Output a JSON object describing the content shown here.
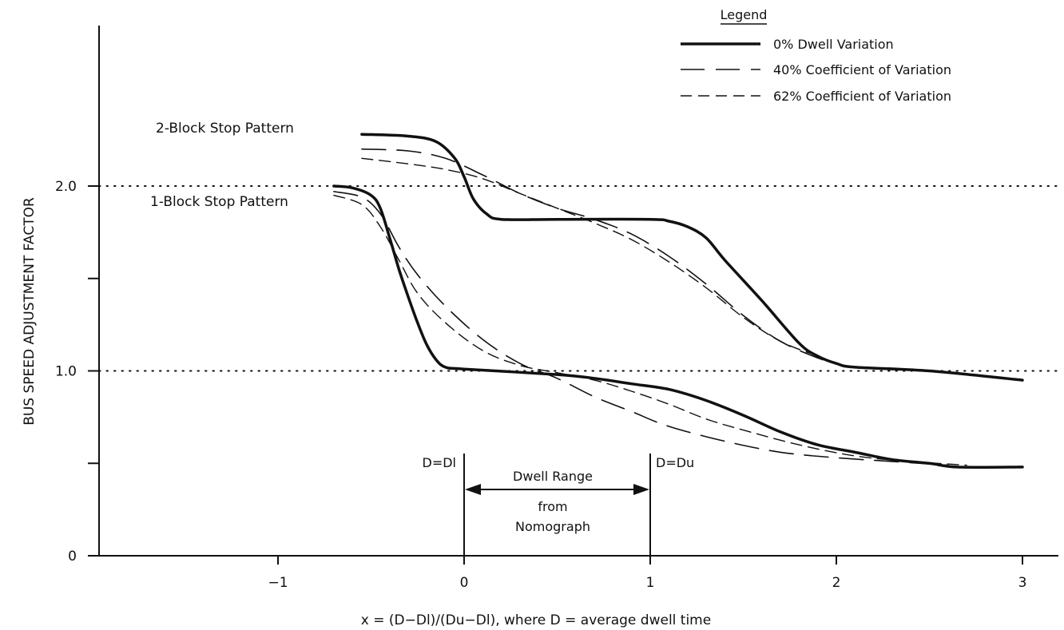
{
  "chart_data": {
    "type": "line",
    "xlabel": "x = (D−Dl)/(Du−Dl), where D = average dwell time",
    "ylabel": "BUS SPEED ADJUSTMENT FACTOR",
    "xlim": [
      -1.95,
      3.3
    ],
    "ylim": [
      0,
      2.7
    ],
    "x_ticks": [
      -1,
      0,
      1,
      2,
      3
    ],
    "x_tick_labels": [
      "−1",
      "0",
      "1",
      "2",
      "3"
    ],
    "y_ticks": [
      0,
      0.5,
      1.0,
      1.5,
      2.0
    ],
    "y_tick_labels": [
      "0",
      "",
      "1.0",
      "",
      "2.0"
    ],
    "reference_lines": [
      1.0,
      2.0
    ],
    "legend": {
      "title": "Legend",
      "position": "top-right",
      "entries": [
        {
          "label": "0% Dwell Variation",
          "style": "solid"
        },
        {
          "label": "40% Coefficient of Variation",
          "style": "long-dash"
        },
        {
          "label": "62% Coefficient of Variation",
          "style": "short-dash"
        }
      ]
    },
    "annotations": {
      "two_block": "2-Block Stop Pattern",
      "one_block": "1-Block Stop Pattern",
      "d_dl": "D=Dl",
      "d_du": "D=Du",
      "range_line1": "Dwell Range",
      "range_line2": "from",
      "range_line3": "Nomograph"
    },
    "series": [
      {
        "group": "2-Block Stop Pattern",
        "style": "solid",
        "points": [
          [
            -0.55,
            2.28
          ],
          [
            -0.3,
            2.27
          ],
          [
            -0.15,
            2.24
          ],
          [
            -0.05,
            2.15
          ],
          [
            0,
            2.05
          ],
          [
            0.05,
            1.93
          ],
          [
            0.12,
            1.85
          ],
          [
            0.2,
            1.82
          ],
          [
            0.5,
            1.82
          ],
          [
            1.0,
            1.82
          ],
          [
            1.1,
            1.81
          ],
          [
            1.2,
            1.78
          ],
          [
            1.3,
            1.72
          ],
          [
            1.4,
            1.6
          ],
          [
            1.6,
            1.38
          ],
          [
            1.8,
            1.15
          ],
          [
            1.9,
            1.08
          ],
          [
            2.0,
            1.04
          ],
          [
            2.1,
            1.02
          ],
          [
            2.5,
            1.0
          ],
          [
            3.0,
            0.95
          ]
        ]
      },
      {
        "group": "2-Block Stop Pattern",
        "style": "long-dash",
        "points": [
          [
            -0.55,
            2.2
          ],
          [
            -0.3,
            2.19
          ],
          [
            -0.1,
            2.15
          ],
          [
            0.1,
            2.06
          ],
          [
            0.3,
            1.96
          ],
          [
            0.5,
            1.88
          ],
          [
            0.7,
            1.82
          ],
          [
            0.9,
            1.74
          ],
          [
            1.1,
            1.62
          ],
          [
            1.3,
            1.47
          ],
          [
            1.5,
            1.3
          ],
          [
            1.7,
            1.16
          ],
          [
            1.9,
            1.07
          ],
          [
            2.0,
            1.04
          ]
        ]
      },
      {
        "group": "2-Block Stop Pattern",
        "style": "short-dash",
        "points": [
          [
            -0.55,
            2.15
          ],
          [
            -0.3,
            2.12
          ],
          [
            -0.1,
            2.09
          ],
          [
            0.1,
            2.04
          ],
          [
            0.3,
            1.96
          ],
          [
            0.5,
            1.88
          ],
          [
            0.7,
            1.8
          ],
          [
            0.9,
            1.71
          ],
          [
            1.1,
            1.59
          ],
          [
            1.3,
            1.45
          ],
          [
            1.5,
            1.29
          ],
          [
            1.7,
            1.16
          ],
          [
            1.9,
            1.08
          ],
          [
            2.0,
            1.04
          ]
        ]
      },
      {
        "group": "1-Block Stop Pattern",
        "style": "solid",
        "points": [
          [
            -0.7,
            2.0
          ],
          [
            -0.6,
            1.99
          ],
          [
            -0.5,
            1.95
          ],
          [
            -0.45,
            1.88
          ],
          [
            -0.4,
            1.72
          ],
          [
            -0.35,
            1.55
          ],
          [
            -0.3,
            1.4
          ],
          [
            -0.25,
            1.26
          ],
          [
            -0.2,
            1.14
          ],
          [
            -0.15,
            1.06
          ],
          [
            -0.1,
            1.02
          ],
          [
            0,
            1.01
          ],
          [
            0.5,
            0.98
          ],
          [
            0.7,
            0.96
          ],
          [
            0.9,
            0.93
          ],
          [
            1.1,
            0.9
          ],
          [
            1.3,
            0.84
          ],
          [
            1.5,
            0.76
          ],
          [
            1.7,
            0.67
          ],
          [
            1.9,
            0.6
          ],
          [
            2.1,
            0.56
          ],
          [
            2.3,
            0.52
          ],
          [
            2.5,
            0.5
          ],
          [
            2.65,
            0.48
          ],
          [
            3.0,
            0.48
          ]
        ]
      },
      {
        "group": "1-Block Stop Pattern",
        "style": "long-dash",
        "points": [
          [
            -0.7,
            1.97
          ],
          [
            -0.55,
            1.94
          ],
          [
            -0.45,
            1.85
          ],
          [
            -0.35,
            1.67
          ],
          [
            -0.25,
            1.52
          ],
          [
            -0.1,
            1.35
          ],
          [
            0.1,
            1.17
          ],
          [
            0.3,
            1.04
          ],
          [
            0.5,
            0.96
          ],
          [
            0.7,
            0.86
          ],
          [
            0.9,
            0.78
          ],
          [
            1.1,
            0.7
          ],
          [
            1.4,
            0.62
          ],
          [
            1.7,
            0.56
          ],
          [
            2.0,
            0.53
          ],
          [
            2.3,
            0.51
          ],
          [
            2.6,
            0.49
          ]
        ]
      },
      {
        "group": "1-Block Stop Pattern",
        "style": "short-dash",
        "points": [
          [
            -0.7,
            1.95
          ],
          [
            -0.55,
            1.9
          ],
          [
            -0.45,
            1.78
          ],
          [
            -0.35,
            1.6
          ],
          [
            -0.25,
            1.42
          ],
          [
            -0.1,
            1.26
          ],
          [
            0.1,
            1.11
          ],
          [
            0.3,
            1.03
          ],
          [
            0.5,
            0.99
          ],
          [
            0.7,
            0.95
          ],
          [
            0.9,
            0.89
          ],
          [
            1.1,
            0.82
          ],
          [
            1.3,
            0.74
          ],
          [
            1.5,
            0.68
          ],
          [
            1.8,
            0.6
          ],
          [
            2.1,
            0.54
          ],
          [
            2.4,
            0.51
          ],
          [
            2.7,
            0.49
          ]
        ]
      }
    ]
  }
}
